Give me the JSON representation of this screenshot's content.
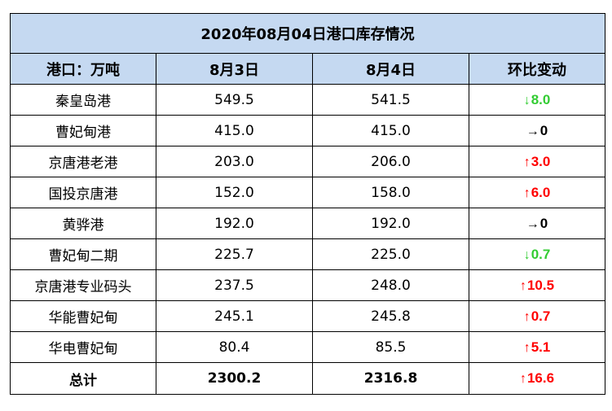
{
  "table": {
    "title": "2020年08月04日港口库存情况",
    "headers": [
      "港口：万吨",
      "8月3日",
      "8月4日",
      "环比变动"
    ],
    "rows": [
      {
        "port": "秦皇岛港",
        "aug3": "549.5",
        "aug4": "541.5",
        "arrow": "↓",
        "change": "8.0",
        "direction": "down"
      },
      {
        "port": "曹妃甸港",
        "aug3": "415.0",
        "aug4": "415.0",
        "arrow": "→",
        "change": "0",
        "direction": "flat"
      },
      {
        "port": "京唐港老港",
        "aug3": "203.0",
        "aug4": "206.0",
        "arrow": "↑",
        "change": "3.0",
        "direction": "up"
      },
      {
        "port": "国投京唐港",
        "aug3": "152.0",
        "aug4": "158.0",
        "arrow": "↑",
        "change": "6.0",
        "direction": "up"
      },
      {
        "port": "黄骅港",
        "aug3": "192.0",
        "aug4": "192.0",
        "arrow": "→",
        "change": "0",
        "direction": "flat"
      },
      {
        "port": "曹妃甸二期",
        "aug3": "225.7",
        "aug4": "225.0",
        "arrow": "↓",
        "change": "0.7",
        "direction": "down"
      },
      {
        "port": "京唐港专业码头",
        "aug3": "237.5",
        "aug4": "248.0",
        "arrow": "↑",
        "change": "10.5",
        "direction": "up"
      },
      {
        "port": "华能曹妃甸",
        "aug3": "245.1",
        "aug4": "245.8",
        "arrow": "↑",
        "change": "0.7",
        "direction": "up"
      },
      {
        "port": "华电曹妃甸",
        "aug3": "80.4",
        "aug4": "85.5",
        "arrow": "↑",
        "change": "5.1",
        "direction": "up"
      }
    ],
    "total": {
      "port": "总计",
      "aug3": "2300.2",
      "aug4": "2316.8",
      "arrow": "↑",
      "change": "16.6",
      "direction": "up"
    }
  },
  "colors": {
    "header_bg": "#c5d9f1",
    "up": "#ff0000",
    "down": "#33cc33",
    "flat": "#000000",
    "border": "#000000"
  }
}
